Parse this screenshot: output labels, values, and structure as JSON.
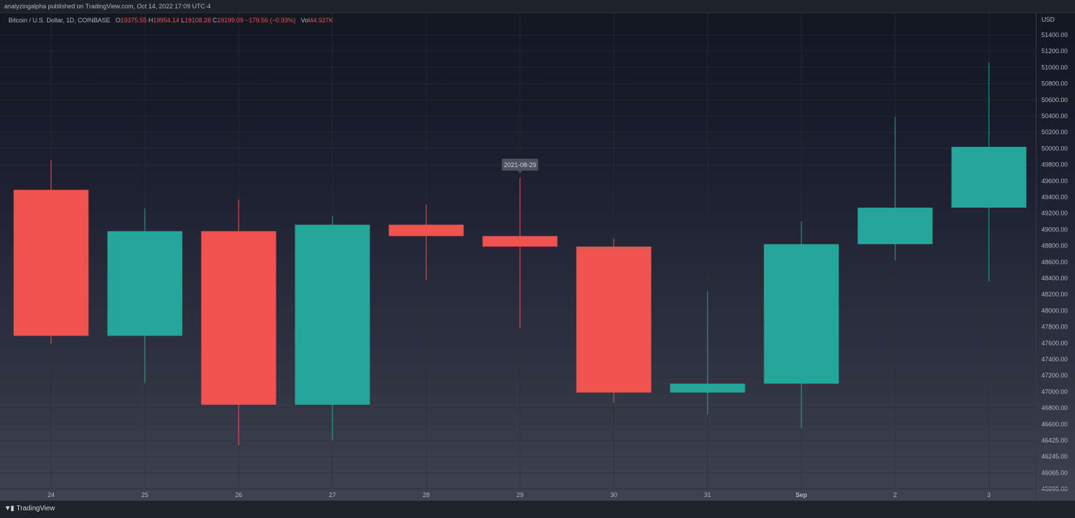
{
  "header": {
    "published_text": "analyzingalpha published on TradingView.com, Oct 14, 2022 17:09 UTC-4"
  },
  "legend": {
    "symbol": "Bitcoin / U.S. Dollar, 1D, COINBASE",
    "o_label": "O",
    "o_value": "19375.55",
    "h_label": "H",
    "h_value": "19954.14",
    "l_label": "L",
    "l_value": "19108.28",
    "c_label": "C",
    "c_value": "19199.09",
    "change": "−179.56 (−0.93%)",
    "vol_label": "Vol",
    "vol_value": "44.927K"
  },
  "tooltip": {
    "date": "2021-08-29"
  },
  "footer": {
    "brand": "TradingView"
  },
  "colors": {
    "up": "#26a69a",
    "down": "#ef5350",
    "grid": "#2a2e39",
    "axis_text": "#b2b5be",
    "tooltip_bg": "#4c525e"
  },
  "chart_data": {
    "type": "candlestick",
    "currency_label": "USD",
    "y_ticks": [
      "51400.00",
      "51200.00",
      "51000.00",
      "50800.00",
      "50600.00",
      "50400.00",
      "50200.00",
      "50000.00",
      "49800.00",
      "49600.00",
      "49400.00",
      "49200.00",
      "49000.00",
      "48800.00",
      "48600.00",
      "48400.00",
      "48200.00",
      "48000.00",
      "47800.00",
      "47600.00",
      "47400.00",
      "47200.00",
      "47000.00",
      "46800.00",
      "46600.00",
      "46425.00",
      "46245.00",
      "46065.00",
      "45895.00"
    ],
    "x_labels": [
      "24",
      "25",
      "26",
      "27",
      "28",
      "29",
      "30",
      "31",
      "Sep",
      "2",
      "3"
    ],
    "x_bold": [
      false,
      false,
      false,
      false,
      false,
      false,
      false,
      false,
      true,
      false,
      false
    ],
    "tooltip_index": 5,
    "candles": [
      {
        "label": "24",
        "open": 49490,
        "high": 49860,
        "low": 47590,
        "close": 47690
      },
      {
        "label": "25",
        "open": 47690,
        "high": 49260,
        "low": 47110,
        "close": 48980
      },
      {
        "label": "26",
        "open": 48980,
        "high": 49370,
        "low": 46340,
        "close": 46840
      },
      {
        "label": "27",
        "open": 46840,
        "high": 49170,
        "low": 46400,
        "close": 49060
      },
      {
        "label": "28",
        "open": 49060,
        "high": 49310,
        "low": 48380,
        "close": 48920
      },
      {
        "label": "29",
        "open": 48920,
        "high": 49640,
        "low": 47790,
        "close": 48790
      },
      {
        "label": "30",
        "open": 48790,
        "high": 48890,
        "low": 46870,
        "close": 46990
      },
      {
        "label": "31",
        "open": 46990,
        "high": 48240,
        "low": 46720,
        "close": 47100
      },
      {
        "label": "Sep",
        "open": 47100,
        "high": 49100,
        "low": 46550,
        "close": 48820
      },
      {
        "label": "2",
        "open": 48820,
        "high": 50390,
        "low": 48620,
        "close": 49270
      },
      {
        "label": "3",
        "open": 49270,
        "high": 51060,
        "low": 48360,
        "close": 50020
      }
    ]
  }
}
